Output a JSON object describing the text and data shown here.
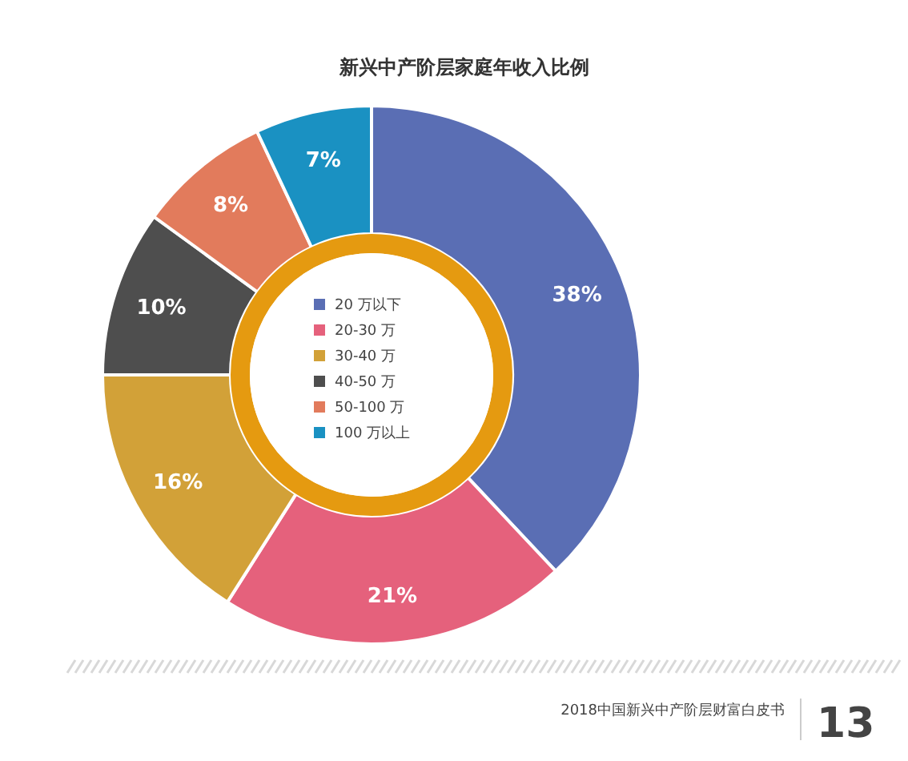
{
  "chart_data": {
    "type": "donut",
    "title": "新兴中产阶层家庭年收入比例",
    "categories": [
      "20 万以下",
      "20-30 万",
      "30-40 万",
      "40-50 万",
      "50-100 万",
      "100 万以上"
    ],
    "values": [
      38,
      21,
      16,
      10,
      8,
      7
    ],
    "value_labels": [
      "38%",
      "21%",
      "16%",
      "10%",
      "8%",
      "7%"
    ],
    "colors": [
      "#5a6eb4",
      "#e5617c",
      "#d2a138",
      "#4e4e4e",
      "#e27b5c",
      "#1a91c2"
    ],
    "legend": "center",
    "annotations": [
      "2018中国新兴中产阶层财富白皮书",
      "13"
    ]
  }
}
